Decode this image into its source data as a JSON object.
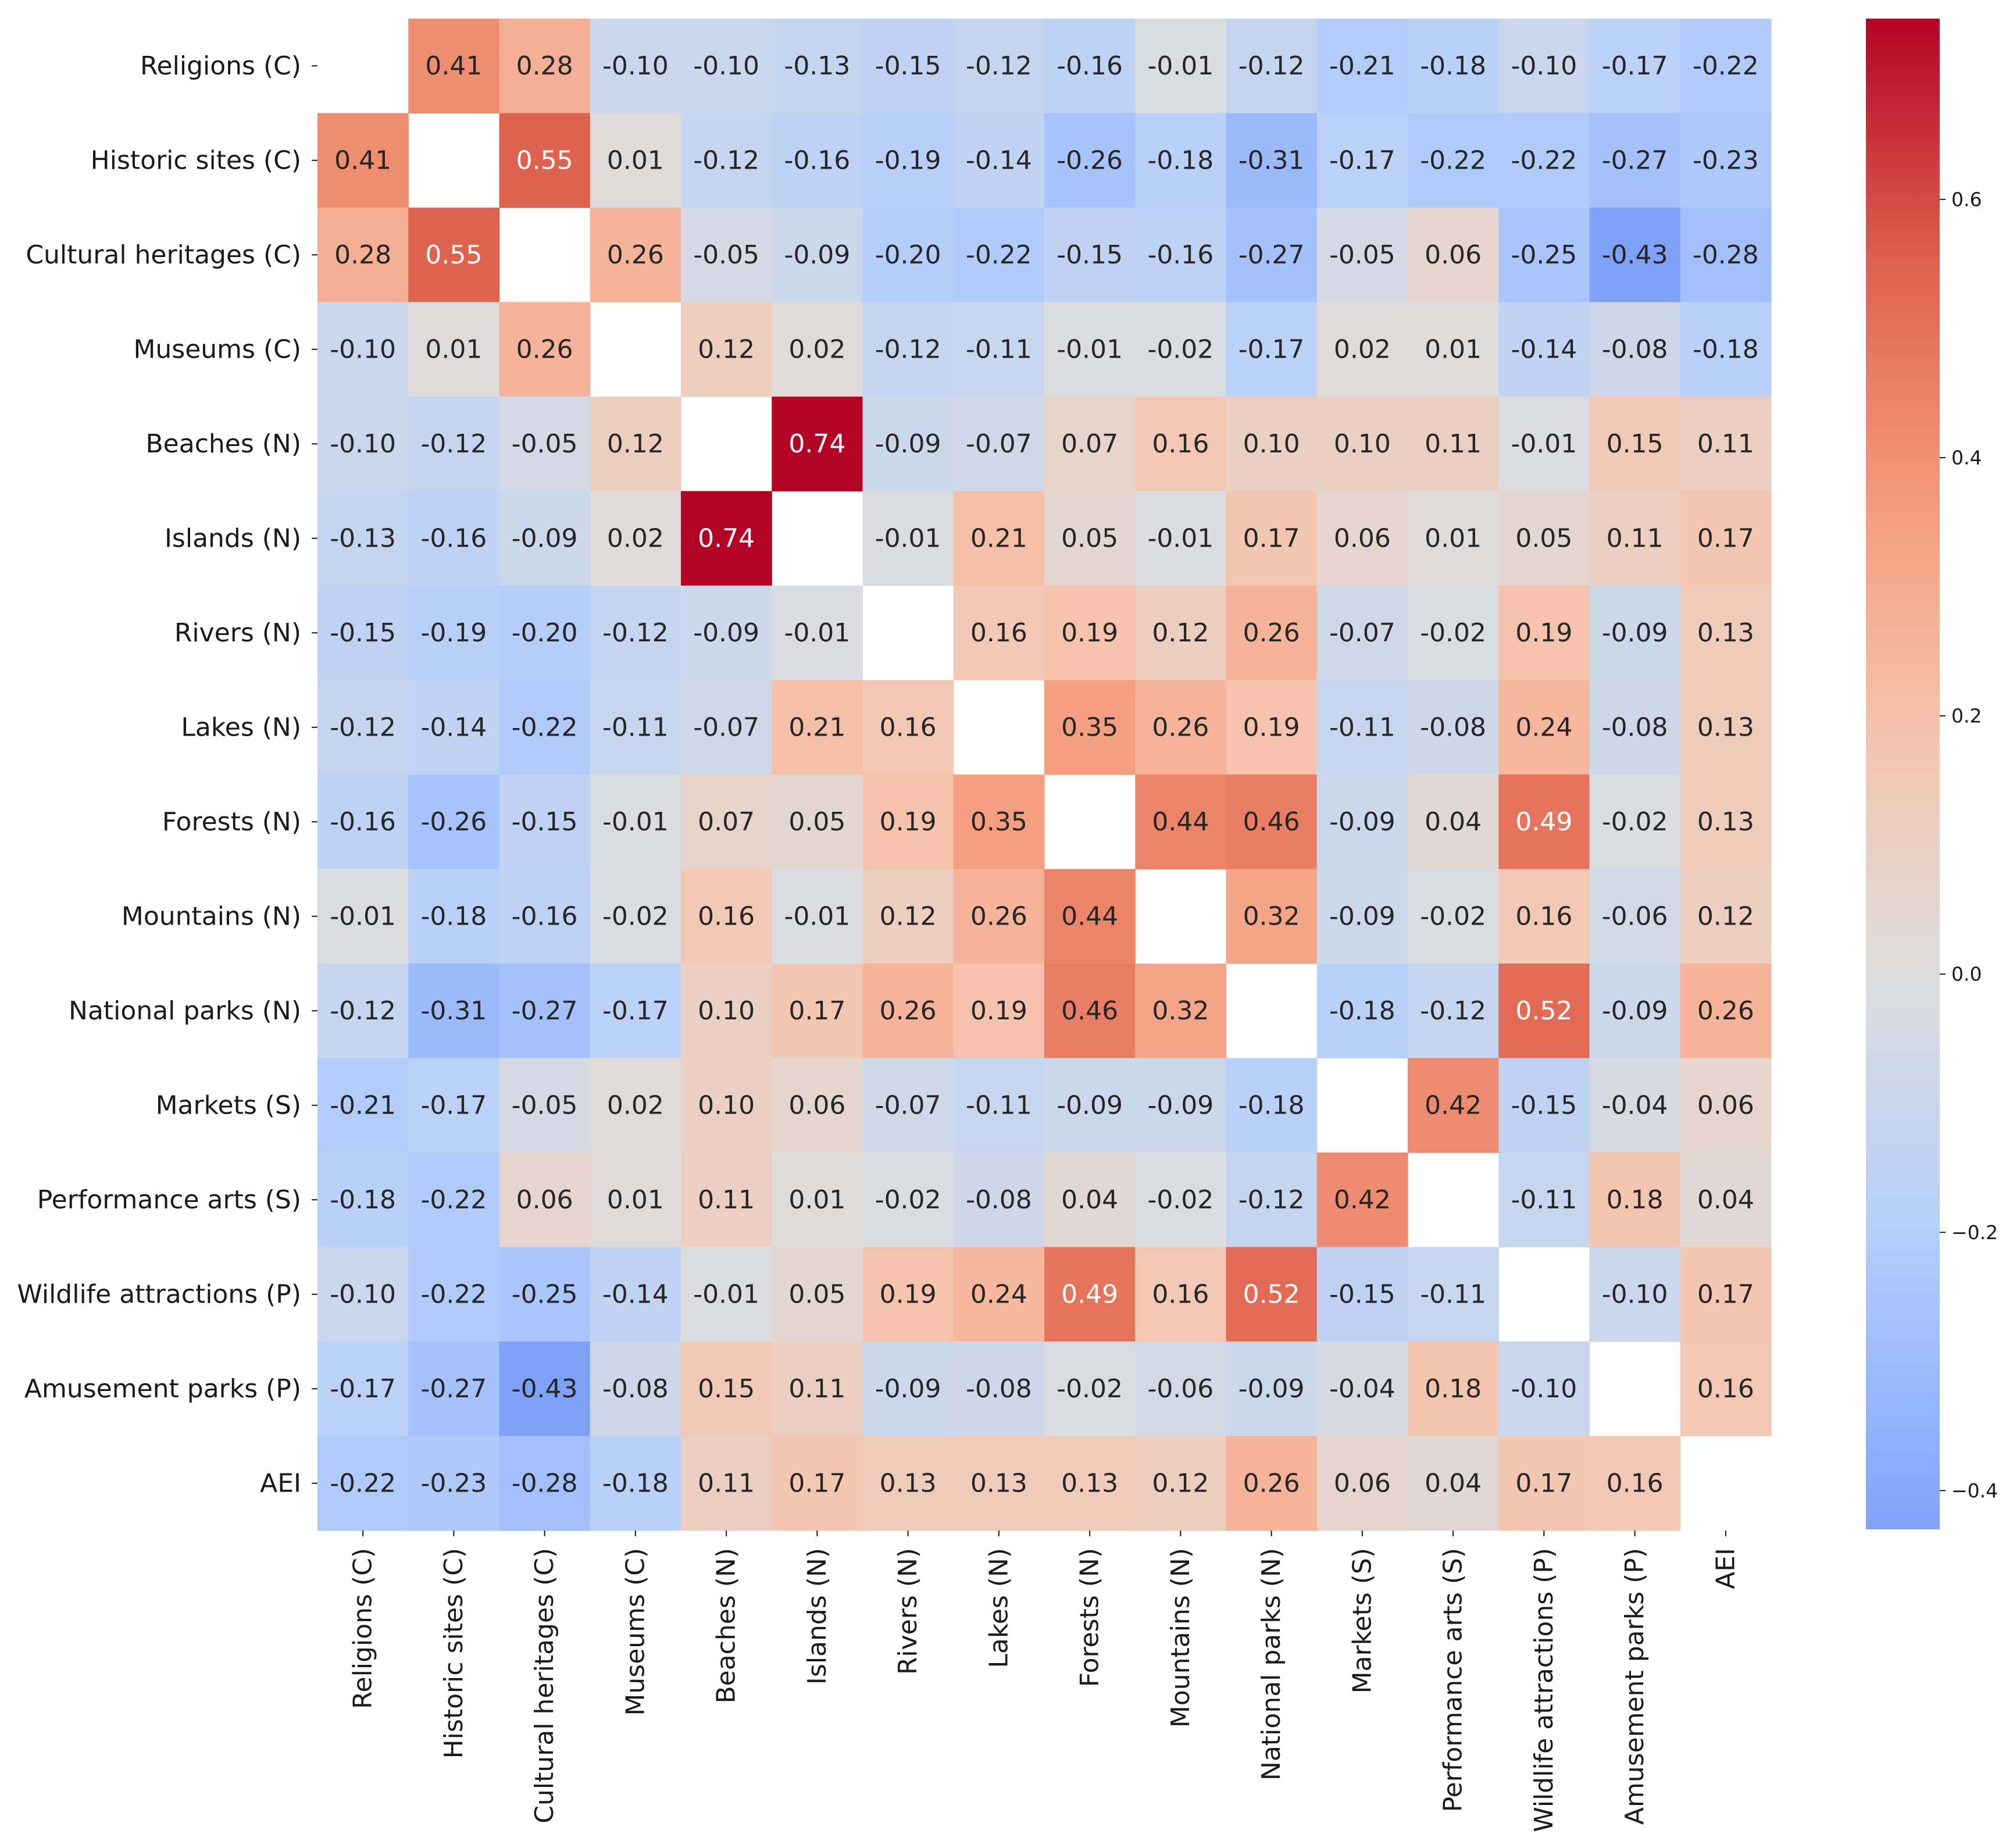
{
  "chart_data": {
    "type": "heatmap",
    "title": "",
    "xlabel": "",
    "ylabel": "",
    "rows": [
      "Religions (C)",
      "Historic sites (C)",
      "Cultural heritages (C)",
      "Museums (C)",
      "Beaches (N)",
      "Islands (N)",
      "Rivers (N)",
      "Lakes (N)",
      "Forests (N)",
      "Mountains (N)",
      "National parks (N)",
      "Markets (S)",
      "Performance arts (S)",
      "Wildlife attractions (P)",
      "Amusement parks (P)",
      "AEI"
    ],
    "columns": [
      "Religions (C)",
      "Historic sites (C)",
      "Cultural heritages (C)",
      "Museums (C)",
      "Beaches (N)",
      "Islands (N)",
      "Rivers (N)",
      "Lakes (N)",
      "Forests (N)",
      "Mountains (N)",
      "National parks (N)",
      "Markets (S)",
      "Performance arts (S)",
      "Wildlife attractions (P)",
      "Amusement parks (P)",
      "AEI"
    ],
    "values": [
      [
        null,
        0.41,
        0.28,
        -0.1,
        -0.1,
        -0.13,
        -0.15,
        -0.12,
        -0.16,
        -0.01,
        -0.12,
        -0.21,
        -0.18,
        -0.1,
        -0.17,
        -0.22
      ],
      [
        0.41,
        null,
        0.55,
        0.01,
        -0.12,
        -0.16,
        -0.19,
        -0.14,
        -0.26,
        -0.18,
        -0.31,
        -0.17,
        -0.22,
        -0.22,
        -0.27,
        -0.23
      ],
      [
        0.28,
        0.55,
        null,
        0.26,
        -0.05,
        -0.09,
        -0.2,
        -0.22,
        -0.15,
        -0.16,
        -0.27,
        -0.05,
        0.06,
        -0.25,
        -0.43,
        -0.28
      ],
      [
        -0.1,
        0.01,
        0.26,
        null,
        0.12,
        0.02,
        -0.12,
        -0.11,
        -0.01,
        -0.02,
        -0.17,
        0.02,
        0.01,
        -0.14,
        -0.08,
        -0.18
      ],
      [
        -0.1,
        -0.12,
        -0.05,
        0.12,
        null,
        0.74,
        -0.09,
        -0.07,
        0.07,
        0.16,
        0.1,
        0.1,
        0.11,
        -0.01,
        0.15,
        0.11
      ],
      [
        -0.13,
        -0.16,
        -0.09,
        0.02,
        0.74,
        null,
        -0.01,
        0.21,
        0.05,
        -0.01,
        0.17,
        0.06,
        0.01,
        0.05,
        0.11,
        0.17
      ],
      [
        -0.15,
        -0.19,
        -0.2,
        -0.12,
        -0.09,
        -0.01,
        null,
        0.16,
        0.19,
        0.12,
        0.26,
        -0.07,
        -0.02,
        0.19,
        -0.09,
        0.13
      ],
      [
        -0.12,
        -0.14,
        -0.22,
        -0.11,
        -0.07,
        0.21,
        0.16,
        null,
        0.35,
        0.26,
        0.19,
        -0.11,
        -0.08,
        0.24,
        -0.08,
        0.13
      ],
      [
        -0.16,
        -0.26,
        -0.15,
        -0.01,
        0.07,
        0.05,
        0.19,
        0.35,
        null,
        0.44,
        0.46,
        -0.09,
        0.04,
        0.49,
        -0.02,
        0.13
      ],
      [
        -0.01,
        -0.18,
        -0.16,
        -0.02,
        0.16,
        -0.01,
        0.12,
        0.26,
        0.44,
        null,
        0.32,
        -0.09,
        -0.02,
        0.16,
        -0.06,
        0.12
      ],
      [
        -0.12,
        -0.31,
        -0.27,
        -0.17,
        0.1,
        0.17,
        0.26,
        0.19,
        0.46,
        0.32,
        null,
        -0.18,
        -0.12,
        0.52,
        -0.09,
        0.26
      ],
      [
        -0.21,
        -0.17,
        -0.05,
        0.02,
        0.1,
        0.06,
        -0.07,
        -0.11,
        -0.09,
        -0.09,
        -0.18,
        null,
        0.42,
        -0.15,
        -0.04,
        0.06
      ],
      [
        -0.18,
        -0.22,
        0.06,
        0.01,
        0.11,
        0.01,
        -0.02,
        -0.08,
        0.04,
        -0.02,
        -0.12,
        0.42,
        null,
        -0.11,
        0.18,
        0.04
      ],
      [
        -0.1,
        -0.22,
        -0.25,
        -0.14,
        -0.01,
        0.05,
        0.19,
        0.24,
        0.49,
        0.16,
        0.52,
        -0.15,
        -0.11,
        null,
        -0.1,
        0.17
      ],
      [
        -0.17,
        -0.27,
        -0.43,
        -0.08,
        0.15,
        0.11,
        -0.09,
        -0.08,
        -0.02,
        -0.06,
        -0.09,
        -0.04,
        0.18,
        -0.1,
        null,
        0.16
      ],
      [
        -0.22,
        -0.23,
        -0.28,
        -0.18,
        0.11,
        0.17,
        0.13,
        0.13,
        0.13,
        0.12,
        0.26,
        0.06,
        0.04,
        0.17,
        0.16,
        null
      ]
    ],
    "value_format": "2 decimals",
    "colorbar": {
      "colormap": "coolwarm",
      "range": [
        -0.43,
        0.74
      ],
      "center": 0,
      "ticks": [
        0.6,
        0.4,
        0.2,
        0.0,
        -0.2,
        -0.4
      ],
      "tick_labels": [
        "0.6",
        "0.4",
        "0.2",
        "0.0",
        "−0.2",
        "−0.4"
      ],
      "position": "right"
    },
    "grid": false,
    "legend": "none"
  }
}
